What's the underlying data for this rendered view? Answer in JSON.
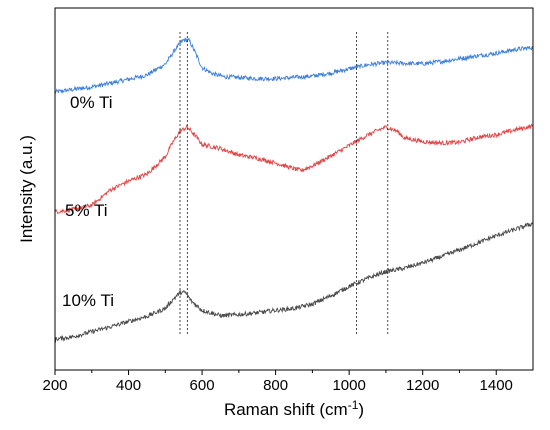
{
  "chart_data": {
    "type": "line",
    "xlabel": "Raman shift (cm",
    "xlabel_sup": "-1",
    "xlabel_close": ")",
    "ylabel": "Intensity (a.u.)",
    "xlim": [
      200,
      1500
    ],
    "ylim": [
      0,
      1
    ],
    "y_tick_labels": false,
    "x_ticks": [
      200,
      400,
      600,
      800,
      1000,
      1200,
      1400
    ],
    "x_tick_labels": [
      "200",
      "400",
      "600",
      "800",
      "1000",
      "1200",
      "1400"
    ],
    "grid": false,
    "reference_lines_x": [
      540,
      560,
      1020,
      1105
    ],
    "series": [
      {
        "name": "0% Ti",
        "color": "#3d7fdc",
        "x": [
          200,
          250,
          300,
          350,
          400,
          450,
          500,
          530,
          550,
          565,
          580,
          600,
          630,
          660,
          700,
          750,
          800,
          850,
          900,
          950,
          1000,
          1050,
          1100,
          1150,
          1200,
          1250,
          1300,
          1350,
          1400,
          1450,
          1500
        ],
        "y": [
          0.768,
          0.775,
          0.782,
          0.792,
          0.803,
          0.815,
          0.845,
          0.89,
          0.912,
          0.91,
          0.88,
          0.835,
          0.818,
          0.81,
          0.808,
          0.805,
          0.805,
          0.808,
          0.812,
          0.82,
          0.832,
          0.843,
          0.849,
          0.847,
          0.846,
          0.852,
          0.86,
          0.868,
          0.875,
          0.885,
          0.891
        ]
      },
      {
        "name": "5% Ti",
        "color": "#e04646",
        "x": [
          200,
          250,
          300,
          350,
          400,
          450,
          500,
          520,
          540,
          560,
          580,
          600,
          650,
          700,
          750,
          800,
          850,
          870,
          900,
          950,
          1000,
          1050,
          1080,
          1100,
          1130,
          1150,
          1200,
          1250,
          1300,
          1350,
          1400,
          1450,
          1500
        ],
        "y": [
          0.437,
          0.443,
          0.455,
          0.497,
          0.522,
          0.541,
          0.589,
          0.628,
          0.66,
          0.671,
          0.649,
          0.623,
          0.612,
          0.594,
          0.585,
          0.572,
          0.556,
          0.551,
          0.564,
          0.591,
          0.62,
          0.649,
          0.663,
          0.671,
          0.66,
          0.641,
          0.631,
          0.627,
          0.629,
          0.643,
          0.65,
          0.663,
          0.674
        ]
      },
      {
        "name": "10% Ti",
        "color": "#4a4a4a",
        "x": [
          200,
          250,
          300,
          350,
          400,
          450,
          500,
          520,
          540,
          555,
          570,
          600,
          650,
          700,
          750,
          800,
          850,
          900,
          950,
          1000,
          1050,
          1100,
          1150,
          1200,
          1250,
          1300,
          1350,
          1400,
          1450,
          1500
        ],
        "y": [
          0.085,
          0.092,
          0.106,
          0.119,
          0.134,
          0.148,
          0.17,
          0.194,
          0.214,
          0.214,
          0.191,
          0.165,
          0.15,
          0.153,
          0.158,
          0.165,
          0.17,
          0.182,
          0.205,
          0.231,
          0.253,
          0.272,
          0.281,
          0.296,
          0.313,
          0.332,
          0.351,
          0.371,
          0.388,
          0.405
        ]
      }
    ]
  }
}
